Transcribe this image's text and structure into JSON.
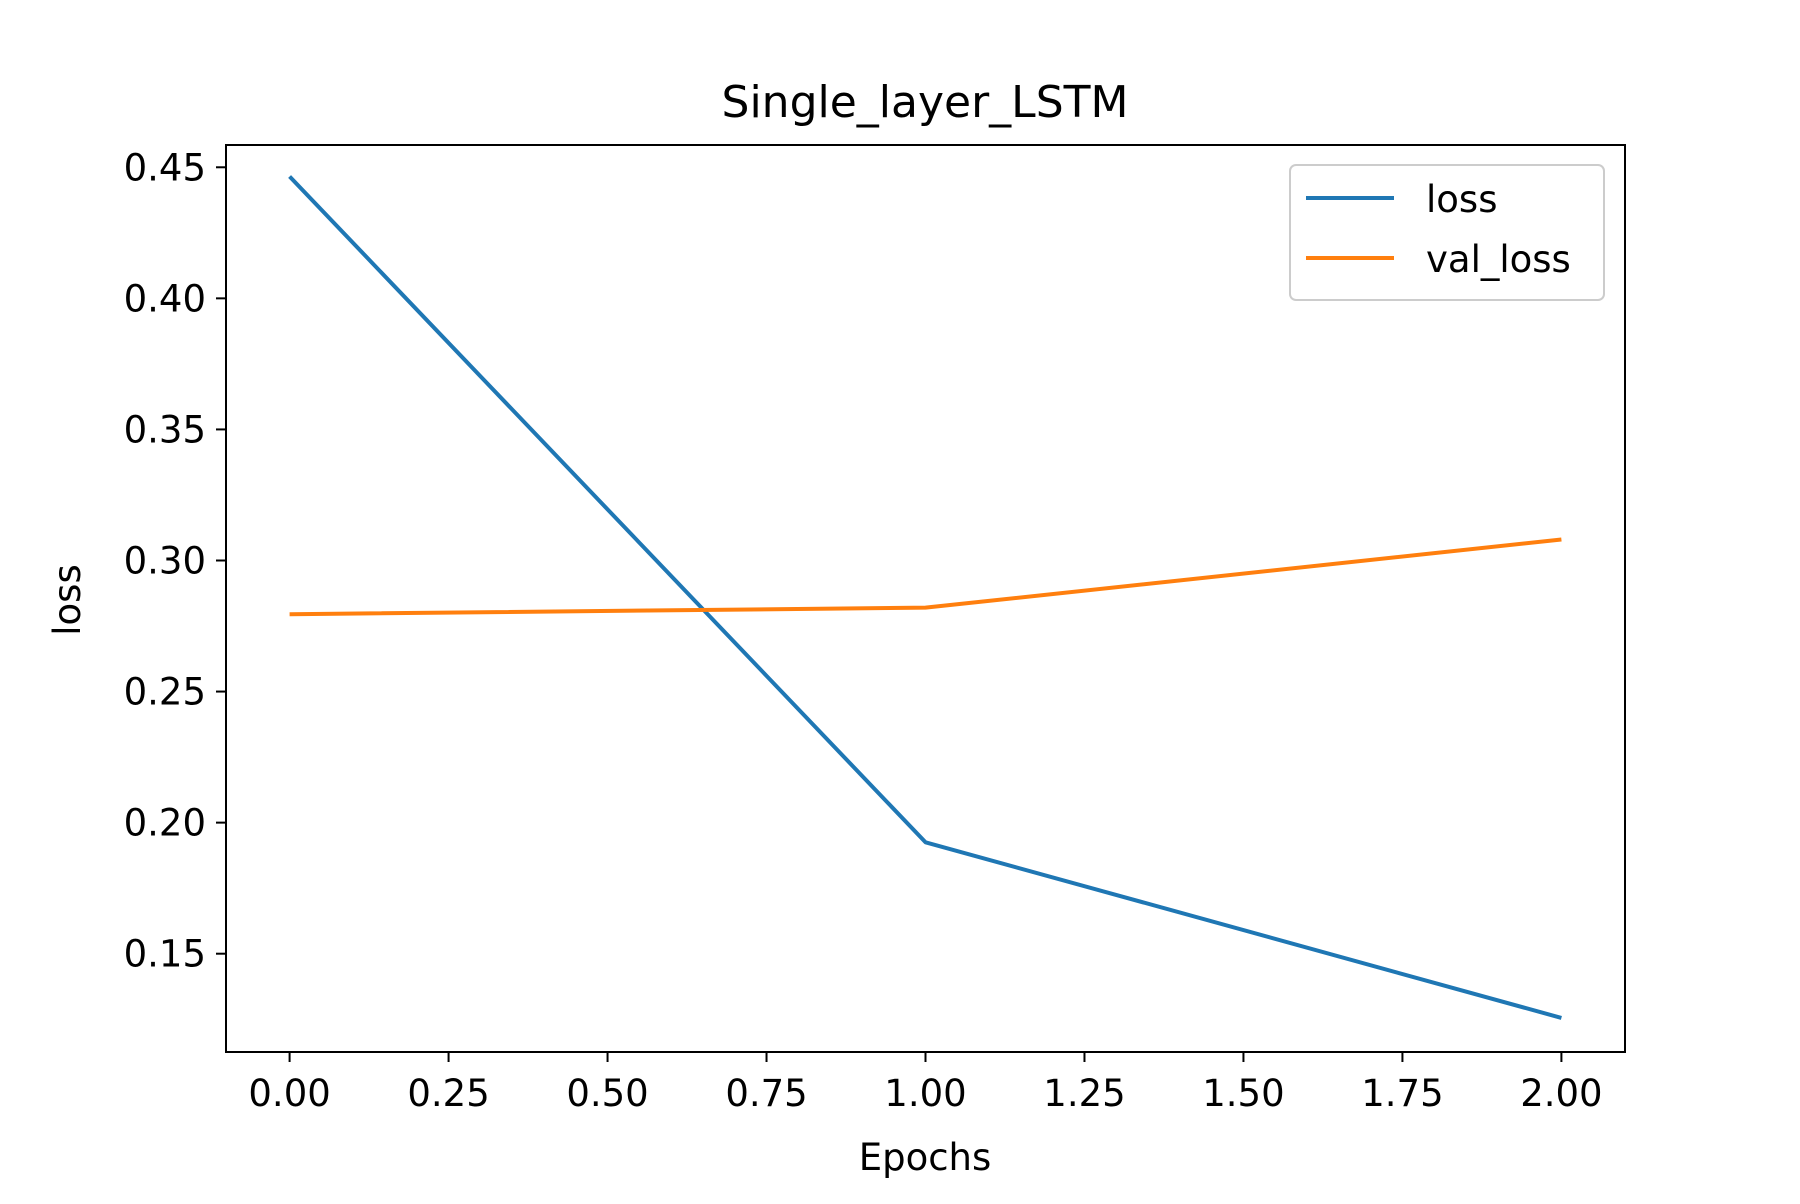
{
  "chart_data": {
    "type": "line",
    "title": "Single_layer_LSTM",
    "xlabel": "Epochs",
    "ylabel": "loss",
    "x": [
      0,
      1,
      2
    ],
    "series": [
      {
        "name": "loss",
        "color": "#1f77b4",
        "values": [
          0.4465,
          0.1925,
          0.1255
        ]
      },
      {
        "name": "val_loss",
        "color": "#ff7f0e",
        "values": [
          0.2795,
          0.282,
          0.308
        ]
      }
    ],
    "xlim": [
      -0.1,
      2.1
    ],
    "ylim": [
      0.1125,
      0.4585
    ],
    "x_ticks": [
      "0.00",
      "0.25",
      "0.50",
      "0.75",
      "1.00",
      "1.25",
      "1.50",
      "1.75",
      "2.00"
    ],
    "y_ticks": [
      "0.15",
      "0.20",
      "0.25",
      "0.30",
      "0.35",
      "0.40",
      "0.45"
    ],
    "grid": false,
    "legend_position": "top-right"
  }
}
